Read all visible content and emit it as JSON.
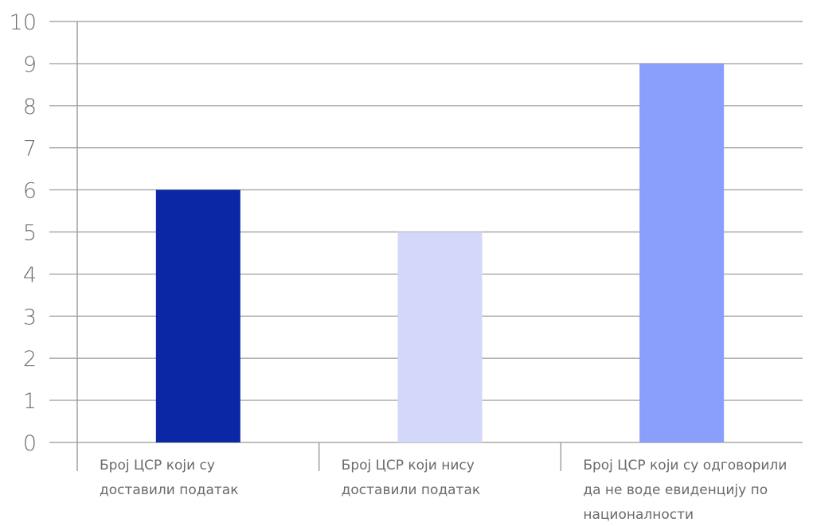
{
  "chart_data": {
    "type": "bar",
    "categories": [
      [
        "Број ЦСР који су",
        "доставили податак"
      ],
      [
        "Број ЦСР који нису",
        "доставили податак"
      ],
      [
        "Број ЦСР који су одговорили",
        "да не воде евиденцију по",
        "националности"
      ]
    ],
    "values": [
      6,
      5,
      9
    ],
    "colors": [
      "#0b27a5",
      "#d3d7fa",
      "#8a9ffb"
    ],
    "ylim": [
      0,
      10
    ],
    "yticks": [
      0,
      1,
      2,
      3,
      4,
      5,
      6,
      7,
      8,
      9,
      10
    ],
    "grid": true,
    "title": "",
    "xlabel": "",
    "ylabel": ""
  }
}
